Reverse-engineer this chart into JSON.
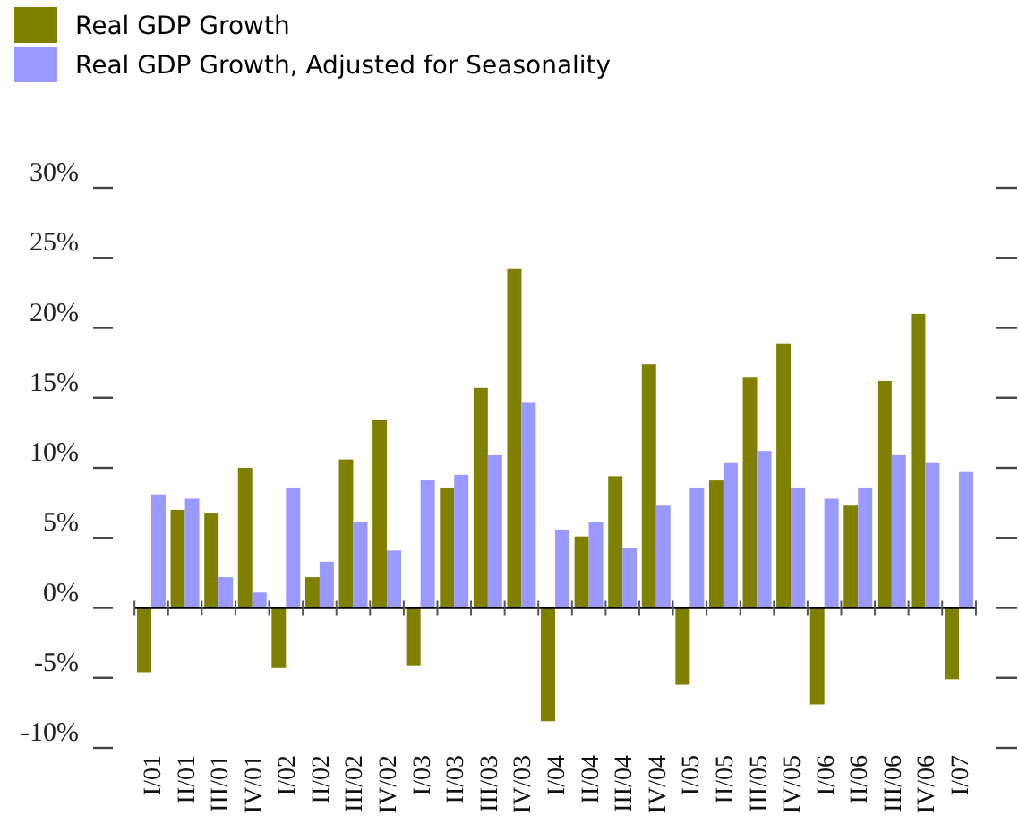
{
  "chart_data": {
    "type": "bar",
    "categories": [
      "I/01",
      "II/01",
      "III/01",
      "IV/01",
      "I/02",
      "II/02",
      "III/02",
      "IV/02",
      "I/03",
      "II/03",
      "III/03",
      "IV/03",
      "I/04",
      "II/04",
      "III/04",
      "IV/04",
      "I/05",
      "II/05",
      "III/05",
      "IV/05",
      "I/06",
      "II/06",
      "III/06",
      "IV/06",
      "I/07"
    ],
    "series": [
      {
        "name": "Real GDP Growth",
        "color": "#808000",
        "values": [
          -4.6,
          7.0,
          6.8,
          10.0,
          -4.3,
          2.2,
          10.6,
          13.4,
          -4.1,
          8.6,
          15.7,
          24.2,
          -8.1,
          5.1,
          9.4,
          17.4,
          -5.5,
          9.1,
          16.5,
          18.9,
          -6.9,
          7.3,
          16.2,
          21.0,
          -5.1
        ]
      },
      {
        "name": "Real GDP Growth, Adjusted for Seasonality",
        "color": "#9999ff",
        "values": [
          8.1,
          7.8,
          2.2,
          1.1,
          8.6,
          3.3,
          6.1,
          4.1,
          9.1,
          9.5,
          10.9,
          14.7,
          5.6,
          6.1,
          4.3,
          7.3,
          8.6,
          10.4,
          11.2,
          8.6,
          7.8,
          8.6,
          10.9,
          10.4,
          9.7
        ]
      }
    ],
    "ylim": [
      -10,
      30
    ],
    "yticks": [
      {
        "value": 30,
        "label": "30%"
      },
      {
        "value": 25,
        "label": "25%"
      },
      {
        "value": 20,
        "label": "20%"
      },
      {
        "value": 15,
        "label": "15%"
      },
      {
        "value": 10,
        "label": "10%"
      },
      {
        "value": 5,
        "label": "5%"
      },
      {
        "value": 0,
        "label": "0%"
      },
      {
        "value": -5,
        "label": "-5%"
      },
      {
        "value": -10,
        "label": "-10%"
      }
    ],
    "legend": "top left"
  }
}
